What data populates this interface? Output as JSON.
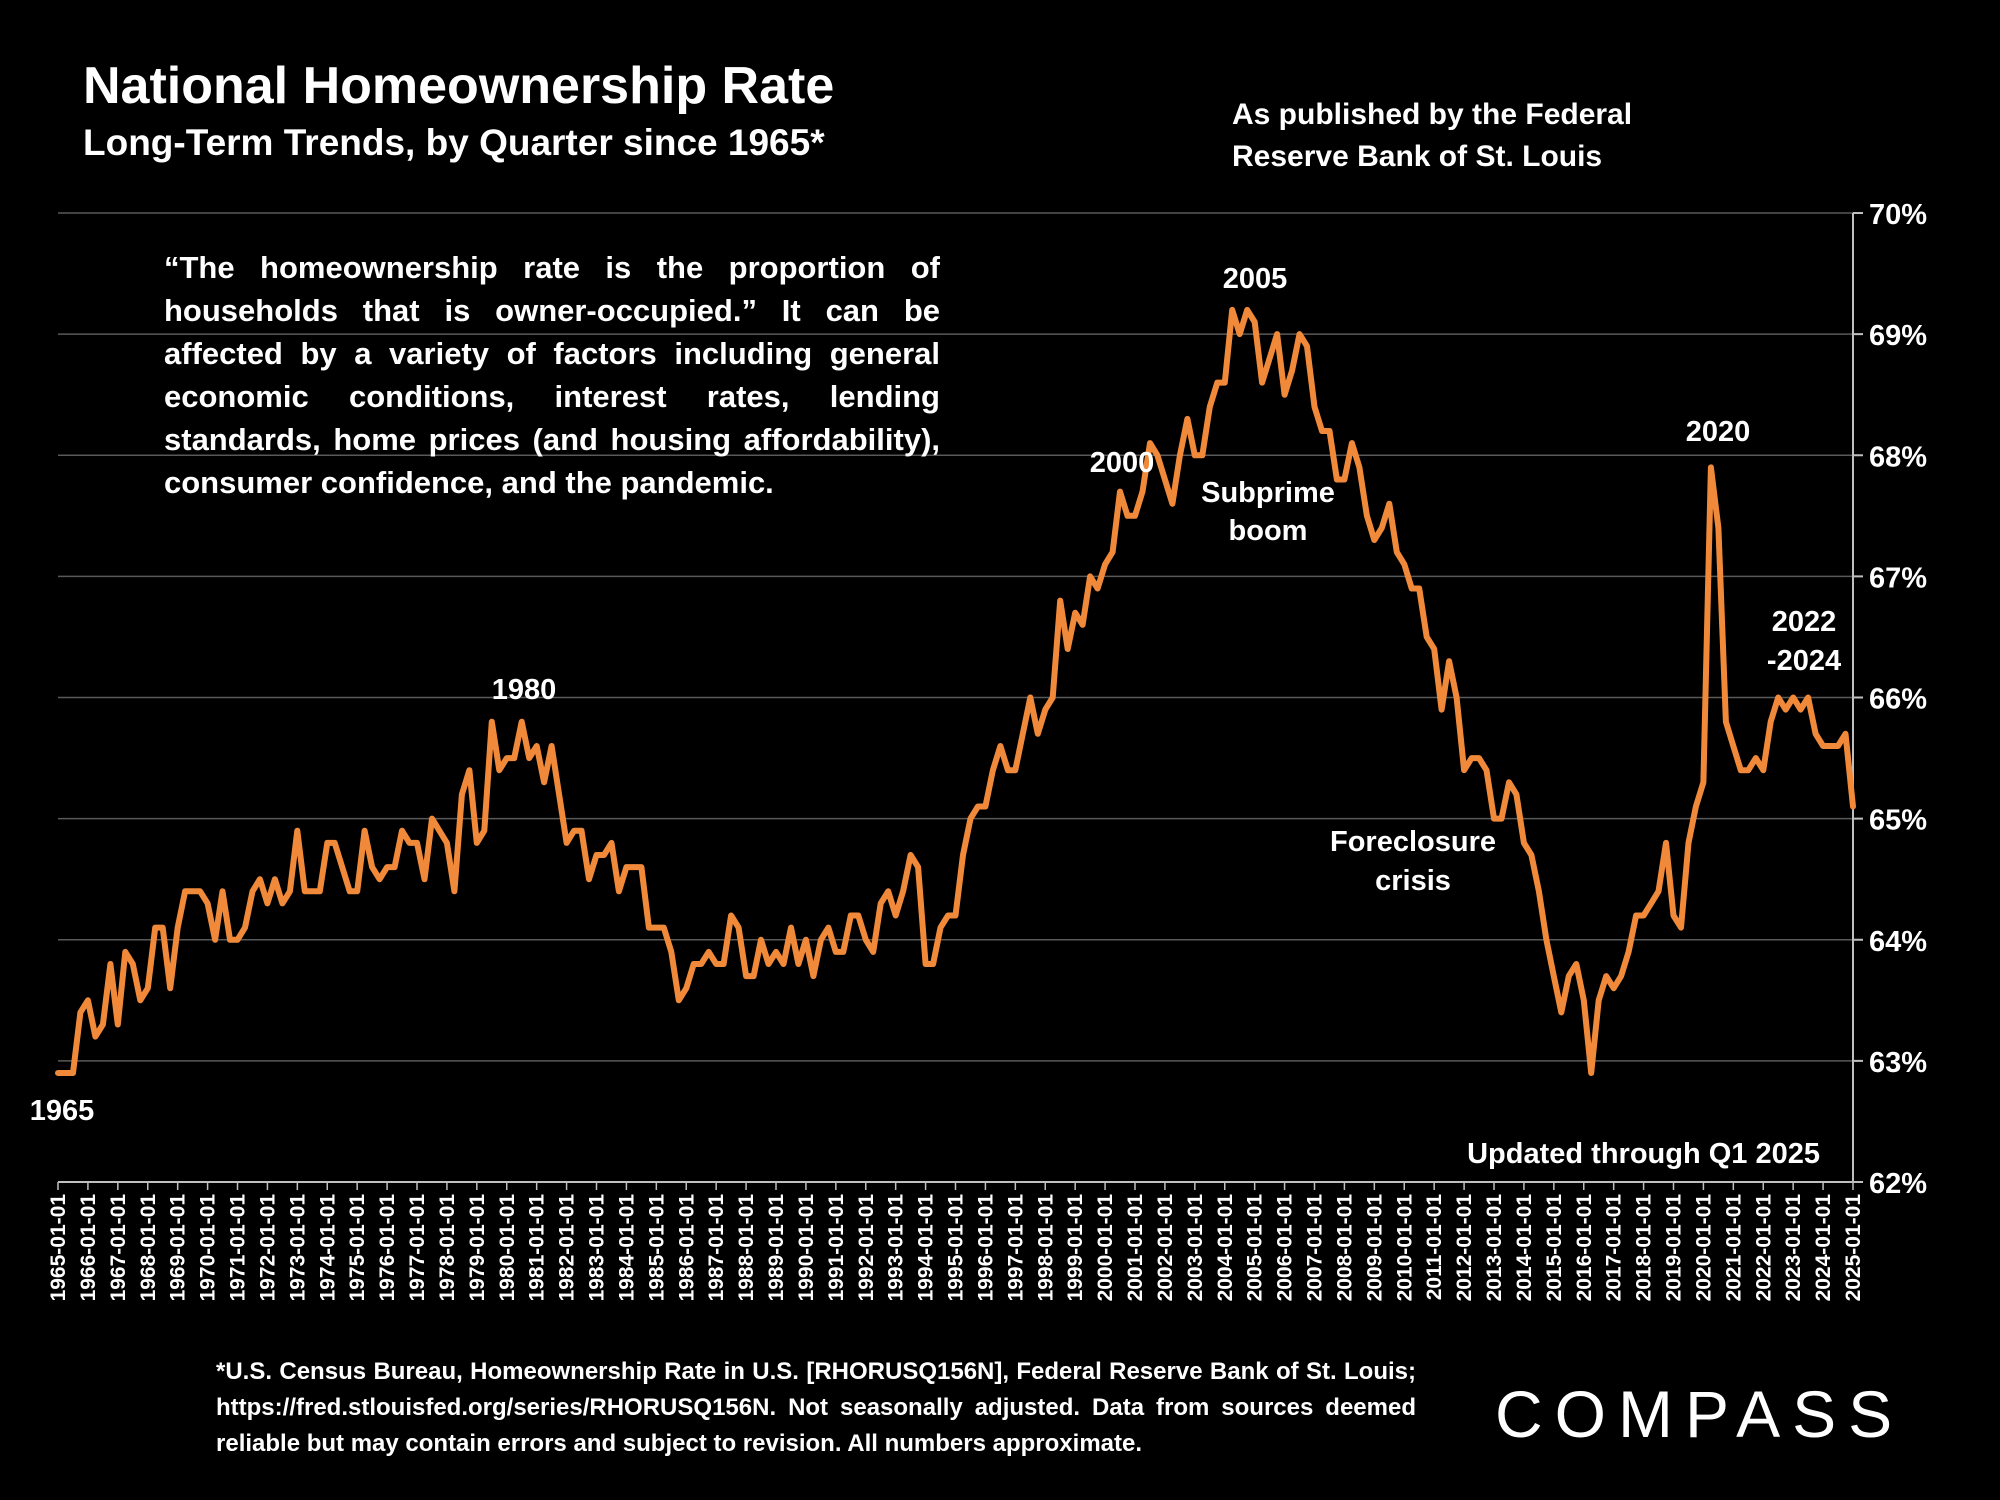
{
  "header": {
    "title": "National Homeownership Rate",
    "subtitle": "Long-Term Trends, by Quarter since 1965*",
    "source_note_line1": "As published by the Federal",
    "source_note_line2": "Reserve Bank of St. Louis"
  },
  "quote": "“The homeownership rate is the proportion of households that is owner-occupied.” It can be affected by a variety of factors including general economic conditions, interest rates, lending standards, home prices (and housing affordability), consumer confidence, and the pandemic.",
  "footnote": "*U.S. Census Bureau, Homeownership Rate in U.S. [RHORUSQ156N], Federal Reserve Bank of St. Louis; https://fred.stlouisfed.org/series/RHORUSQ156N. Not seasonally adjusted. Data from sources deemed reliable but may contain errors and subject to revision. All numbers approximate.",
  "brand": "COMPASS",
  "colors": {
    "background": "#000000",
    "line": "#F08A3A",
    "grid": "#595959",
    "text": "#FFFFFF"
  },
  "chart_data": {
    "type": "line",
    "title": "National Homeownership Rate",
    "ylabel": "",
    "xlabel": "",
    "ylim": [
      62,
      70
    ],
    "y_ticks": [
      "62%",
      "63%",
      "64%",
      "65%",
      "66%",
      "67%",
      "68%",
      "69%",
      "70%"
    ],
    "y_axis_side": "right",
    "x_start": "1965-01-01",
    "x_ticks": [
      "1965-01-01",
      "1966-01-01",
      "1967-01-01",
      "1968-01-01",
      "1969-01-01",
      "1970-01-01",
      "1971-01-01",
      "1972-01-01",
      "1973-01-01",
      "1974-01-01",
      "1975-01-01",
      "1976-01-01",
      "1977-01-01",
      "1978-01-01",
      "1979-01-01",
      "1980-01-01",
      "1981-01-01",
      "1982-01-01",
      "1983-01-01",
      "1984-01-01",
      "1985-01-01",
      "1986-01-01",
      "1987-01-01",
      "1988-01-01",
      "1989-01-01",
      "1990-01-01",
      "1991-01-01",
      "1992-01-01",
      "1993-01-01",
      "1994-01-01",
      "1995-01-01",
      "1996-01-01",
      "1997-01-01",
      "1998-01-01",
      "1999-01-01",
      "2000-01-01",
      "2001-01-01",
      "2002-01-01",
      "2003-01-01",
      "2004-01-01",
      "2005-01-01",
      "2006-01-01",
      "2007-01-01",
      "2008-01-01",
      "2009-01-01",
      "2010-01-01",
      "2011-01-01",
      "2012-01-01",
      "2013-01-01",
      "2014-01-01",
      "2015-01-01",
      "2016-01-01",
      "2017-01-01",
      "2018-01-01",
      "2019-01-01",
      "2020-01-01",
      "2021-01-01",
      "2022-01-01",
      "2023-01-01",
      "2024-01-01",
      "2025-01-01"
    ],
    "series": [
      {
        "name": "Homeownership Rate (%)",
        "frequency": "quarterly",
        "values": [
          62.9,
          62.9,
          62.9,
          63.4,
          63.5,
          63.2,
          63.3,
          63.8,
          63.3,
          63.9,
          63.8,
          63.5,
          63.6,
          64.1,
          64.1,
          63.6,
          64.1,
          64.4,
          64.4,
          64.4,
          64.3,
          64.0,
          64.4,
          64.0,
          64.0,
          64.1,
          64.4,
          64.5,
          64.3,
          64.5,
          64.3,
          64.4,
          64.9,
          64.4,
          64.4,
          64.4,
          64.8,
          64.8,
          64.6,
          64.4,
          64.4,
          64.9,
          64.6,
          64.5,
          64.6,
          64.6,
          64.9,
          64.8,
          64.8,
          64.5,
          65.0,
          64.9,
          64.8,
          64.4,
          65.2,
          65.4,
          64.8,
          64.9,
          65.8,
          65.4,
          65.5,
          65.5,
          65.8,
          65.5,
          65.6,
          65.3,
          65.6,
          65.2,
          64.8,
          64.9,
          64.9,
          64.5,
          64.7,
          64.7,
          64.8,
          64.4,
          64.6,
          64.6,
          64.6,
          64.1,
          64.1,
          64.1,
          63.9,
          63.5,
          63.6,
          63.8,
          63.8,
          63.9,
          63.8,
          63.8,
          64.2,
          64.1,
          63.7,
          63.7,
          64.0,
          63.8,
          63.9,
          63.8,
          64.1,
          63.8,
          64.0,
          63.7,
          64.0,
          64.1,
          63.9,
          63.9,
          64.2,
          64.2,
          64.0,
          63.9,
          64.3,
          64.4,
          64.2,
          64.4,
          64.7,
          64.6,
          63.8,
          63.8,
          64.1,
          64.2,
          64.2,
          64.7,
          65.0,
          65.1,
          65.1,
          65.4,
          65.6,
          65.4,
          65.4,
          65.7,
          66.0,
          65.7,
          65.9,
          66.0,
          66.8,
          66.4,
          66.7,
          66.6,
          67.0,
          66.9,
          67.1,
          67.2,
          67.7,
          67.5,
          67.5,
          67.7,
          68.1,
          68.0,
          67.8,
          67.6,
          68.0,
          68.3,
          68.0,
          68.0,
          68.4,
          68.6,
          68.6,
          69.2,
          69.0,
          69.2,
          69.1,
          68.6,
          68.8,
          69.0,
          68.5,
          68.7,
          69.0,
          68.9,
          68.4,
          68.2,
          68.2,
          67.8,
          67.8,
          68.1,
          67.9,
          67.5,
          67.3,
          67.4,
          67.6,
          67.2,
          67.1,
          66.9,
          66.9,
          66.5,
          66.4,
          65.9,
          66.3,
          66.0,
          65.4,
          65.5,
          65.5,
          65.4,
          65.0,
          65.0,
          65.3,
          65.2,
          64.8,
          64.7,
          64.4,
          64.0,
          63.7,
          63.4,
          63.7,
          63.8,
          63.5,
          62.9,
          63.5,
          63.7,
          63.6,
          63.7,
          63.9,
          64.2,
          64.2,
          64.3,
          64.4,
          64.8,
          64.2,
          64.1,
          64.8,
          65.1,
          65.3,
          67.9,
          67.4,
          65.8,
          65.6,
          65.4,
          65.4,
          65.5,
          65.4,
          65.8,
          66.0,
          65.9,
          66.0,
          65.9,
          66.0,
          65.7,
          65.6,
          65.6,
          65.6,
          65.7,
          65.1
        ]
      }
    ],
    "annotations": [
      {
        "label": "1965",
        "date": "1965-01-01"
      },
      {
        "label": "1980",
        "date": "1980-01-01"
      },
      {
        "label": "2000",
        "date": "2000-01-01"
      },
      {
        "label": "2005",
        "date": "2005-01-01"
      },
      {
        "label": "Subprime",
        "label2": "boom",
        "date": "2004-01-01"
      },
      {
        "label": "Foreclosure",
        "label2": "crisis",
        "date": "2011-01-01"
      },
      {
        "label": "2020",
        "date": "2020-01-01"
      },
      {
        "label": "2022",
        "label2": "-2024",
        "date": "2023-01-01"
      },
      {
        "label": "Updated through Q1 2025",
        "date": "2025-01-01"
      }
    ]
  }
}
